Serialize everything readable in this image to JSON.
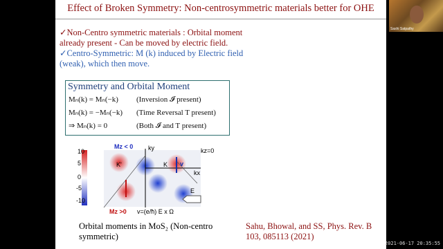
{
  "slide": {
    "title": "Effect of Broken Symmetry: Non-centrosymmetric materials better for OHE",
    "bullets": [
      "✓Non-Centro symmetric materials : Orbital moment already present - Can be moved by electric field.",
      "✓Centro-Symmetric: M (k) induced by Electric field (weak), which then move."
    ],
    "box": {
      "heading": "Symmetry and Orbital Moment",
      "rows": [
        {
          "equation": "Mₙ(k) = Mₙ(−k)",
          "note": "(Inversion 𝓘 present)"
        },
        {
          "equation": "Mₙ(k) = −Mₙ(−k)",
          "note": "(Time Reversal T present)"
        },
        {
          "equation": "⇒ Mₙ(k) = 0",
          "note": "(Both 𝓘 and T present)"
        }
      ]
    },
    "figure": {
      "colorbar_ticks": [
        10,
        5,
        0,
        -5,
        -10
      ],
      "mz_neg": "Mz < 0",
      "mz_pos": "Mz >0",
      "ky": "ky",
      "kx": "kx",
      "kz": "kz=0",
      "k_prime": "K'",
      "k": "K",
      "v": "v",
      "e": "E",
      "velocity": "v=(e/ħ) E x Ω"
    },
    "caption": "Orbital moments in MoS₂ (Non-centro symmetric)",
    "reference": "Sahu, Bhowal, and SS, Phys. Rev. B 103, 085113 (2021)"
  },
  "participant": {
    "name": "Sashi Satpathy"
  },
  "timestamp": "2021-06-17 20:35:55"
}
